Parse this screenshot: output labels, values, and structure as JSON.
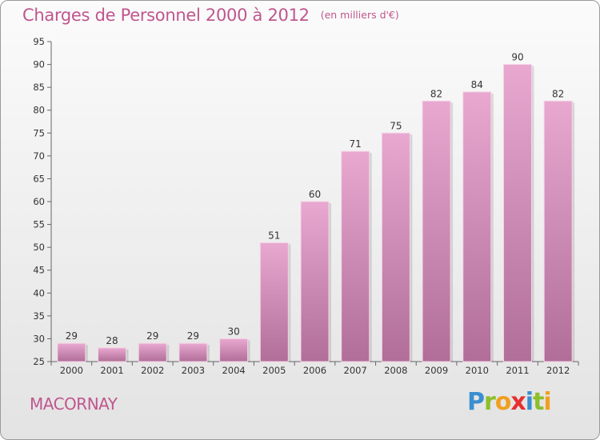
{
  "header": {
    "title": "Charges de Personnel 2000 à 2012",
    "subtitle": "(en milliers d'€)"
  },
  "footer": {
    "commune": "MACORNAY",
    "logo_letters": [
      {
        "char": "P",
        "color": "#3a8fd0"
      },
      {
        "char": "r",
        "color": "#8cbf2a"
      },
      {
        "char": "o",
        "color": "#f0a020"
      },
      {
        "char": "x",
        "color": "#e5312f"
      },
      {
        "char": "i",
        "color": "#3a8fd0"
      },
      {
        "char": "t",
        "color": "#8cbf2a"
      },
      {
        "char": "i",
        "color": "#f0a020"
      }
    ]
  },
  "chart_data": {
    "type": "bar",
    "title": "Charges de Personnel 2000 à 2012",
    "subtitle": "(en milliers d'€)",
    "categories": [
      "2000",
      "2001",
      "2002",
      "2003",
      "2004",
      "2005",
      "2006",
      "2007",
      "2008",
      "2009",
      "2010",
      "2011",
      "2012"
    ],
    "values": [
      29,
      28,
      29,
      29,
      30,
      51,
      60,
      71,
      75,
      82,
      84,
      90,
      82
    ],
    "ylim": [
      25,
      95
    ],
    "yticks": [
      25,
      30,
      35,
      40,
      45,
      50,
      55,
      60,
      65,
      70,
      75,
      80,
      85,
      90,
      95
    ],
    "grid": false,
    "bar_color_top": "#e8a8d0",
    "bar_color_bottom": "#b06e98"
  }
}
